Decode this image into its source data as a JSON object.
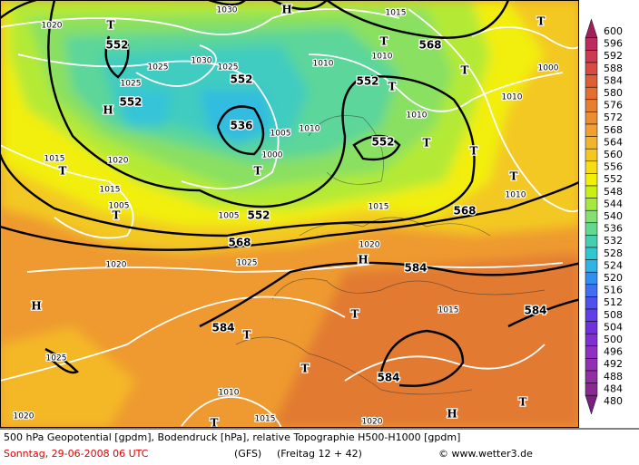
{
  "footer": {
    "line1": "500 hPa Geopotential [gpdm], Bodendruck [hPa], relative Topographie H500-H1000 [gpdm]",
    "date": "Sonntag, 29-06-2008  06 UTC",
    "model": "(GFS)",
    "run": "(Freitag 12 + 42)",
    "credit": "© www.wetter3.de"
  },
  "colorbar": {
    "levels": [
      600,
      596,
      592,
      588,
      584,
      580,
      576,
      572,
      568,
      564,
      560,
      556,
      552,
      548,
      544,
      540,
      536,
      532,
      528,
      524,
      520,
      516,
      512,
      508,
      504,
      500,
      496,
      492,
      488,
      484,
      480
    ],
    "colors": [
      "#a0205c",
      "#bc2c5c",
      "#cc3c50",
      "#d64c42",
      "#de5e36",
      "#e46e30",
      "#e87e30",
      "#ec8e30",
      "#f0a030",
      "#f2b42a",
      "#f4c820",
      "#f5de14",
      "#f0f000",
      "#c8f010",
      "#a4e840",
      "#84e070",
      "#64d890",
      "#44d0b0",
      "#30c8d0",
      "#30b4e8",
      "#3090f0",
      "#4070f0",
      "#5050ee",
      "#6040e6",
      "#7030dc",
      "#8030d0",
      "#9030c0",
      "#9430b2",
      "#9030a2",
      "#882a92",
      "#782080"
    ]
  },
  "map": {
    "geopotential_labels": [
      "552",
      "552",
      "552",
      "552",
      "552",
      "552",
      "536",
      "568",
      "568",
      "568",
      "584",
      "584",
      "584",
      "584"
    ],
    "pressure_labels": [
      "1020",
      "1020",
      "1020",
      "1020",
      "1020",
      "1020",
      "1030",
      "1030",
      "1025",
      "1025",
      "1025",
      "1025",
      "1025",
      "1010",
      "1010",
      "1010",
      "1010",
      "1010",
      "1010",
      "1010",
      "1015",
      "1015",
      "1015",
      "1015",
      "1015",
      "1015",
      "1005",
      "1005",
      "1005",
      "1000",
      "1000"
    ],
    "centers": [
      "H",
      "H",
      "H",
      "H",
      "H",
      "T",
      "T",
      "T",
      "T",
      "T",
      "T",
      "T",
      "T",
      "T",
      "T",
      "T",
      "T",
      "T",
      "T",
      "T",
      "T"
    ]
  }
}
